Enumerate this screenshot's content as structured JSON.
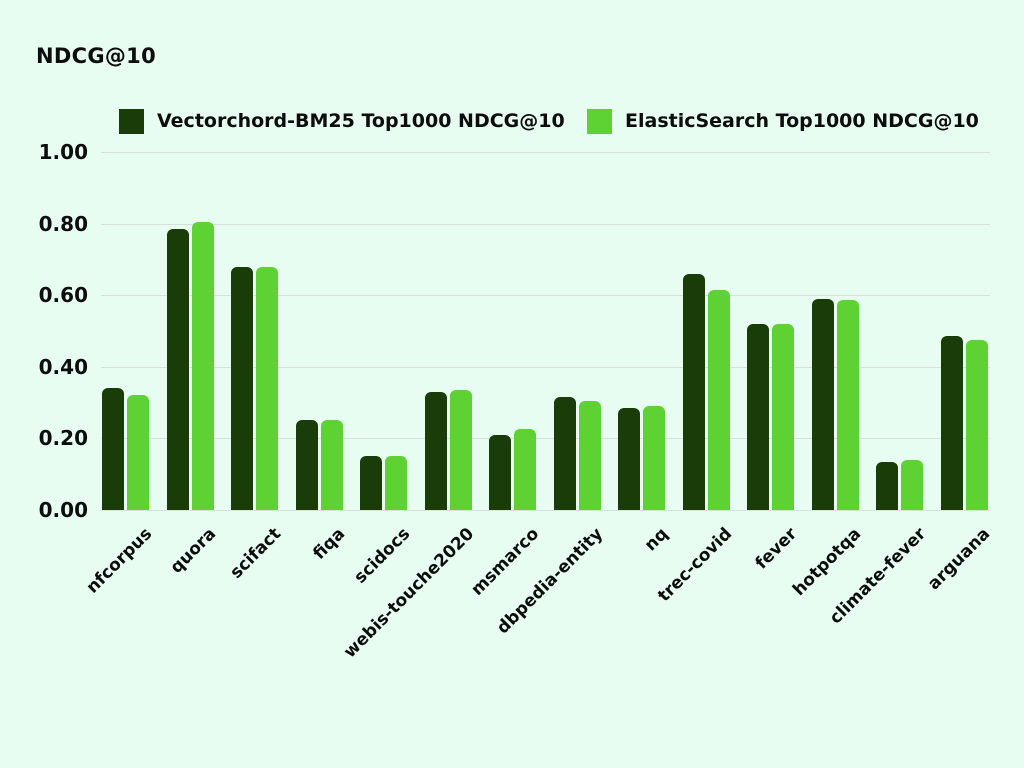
{
  "page": {
    "background": "#e7fdf1",
    "text_color": "#0d0d0d"
  },
  "chart_data": {
    "type": "bar",
    "title": "NDCG@10",
    "xlabel": "",
    "ylabel": "NDCG@10",
    "categories": [
      "nfcorpus",
      "quora",
      "scifact",
      "fiqa",
      "scidocs",
      "webis-touche2020",
      "msmarco",
      "dbpedia-entity",
      "nq",
      "trec-covid",
      "fever",
      "hotpotqa",
      "climate-fever",
      "arguana"
    ],
    "series": [
      {
        "name": "Vectorchord-BM25 Top1000 NDCG@10",
        "color": "#1a3c08",
        "values": [
          0.34,
          0.785,
          0.68,
          0.25,
          0.15,
          0.33,
          0.21,
          0.315,
          0.285,
          0.66,
          0.52,
          0.59,
          0.135,
          0.485
        ]
      },
      {
        "name": "ElasticSearch Top1000 NDCG@10",
        "color": "#5ed133",
        "values": [
          0.32,
          0.805,
          0.68,
          0.25,
          0.15,
          0.335,
          0.225,
          0.305,
          0.29,
          0.615,
          0.52,
          0.587,
          0.14,
          0.475
        ]
      }
    ],
    "ylim": [
      0,
      1
    ],
    "ytick_values": [
      1.0,
      0.8,
      0.6,
      0.4,
      0.2,
      0.0
    ],
    "ytick_labels": [
      "1.00",
      "0.80",
      "0.60",
      "0.40",
      "0.20",
      "0.00"
    ],
    "grid": true,
    "gridline_color": "#d9e0d8",
    "legend_position": "top"
  }
}
